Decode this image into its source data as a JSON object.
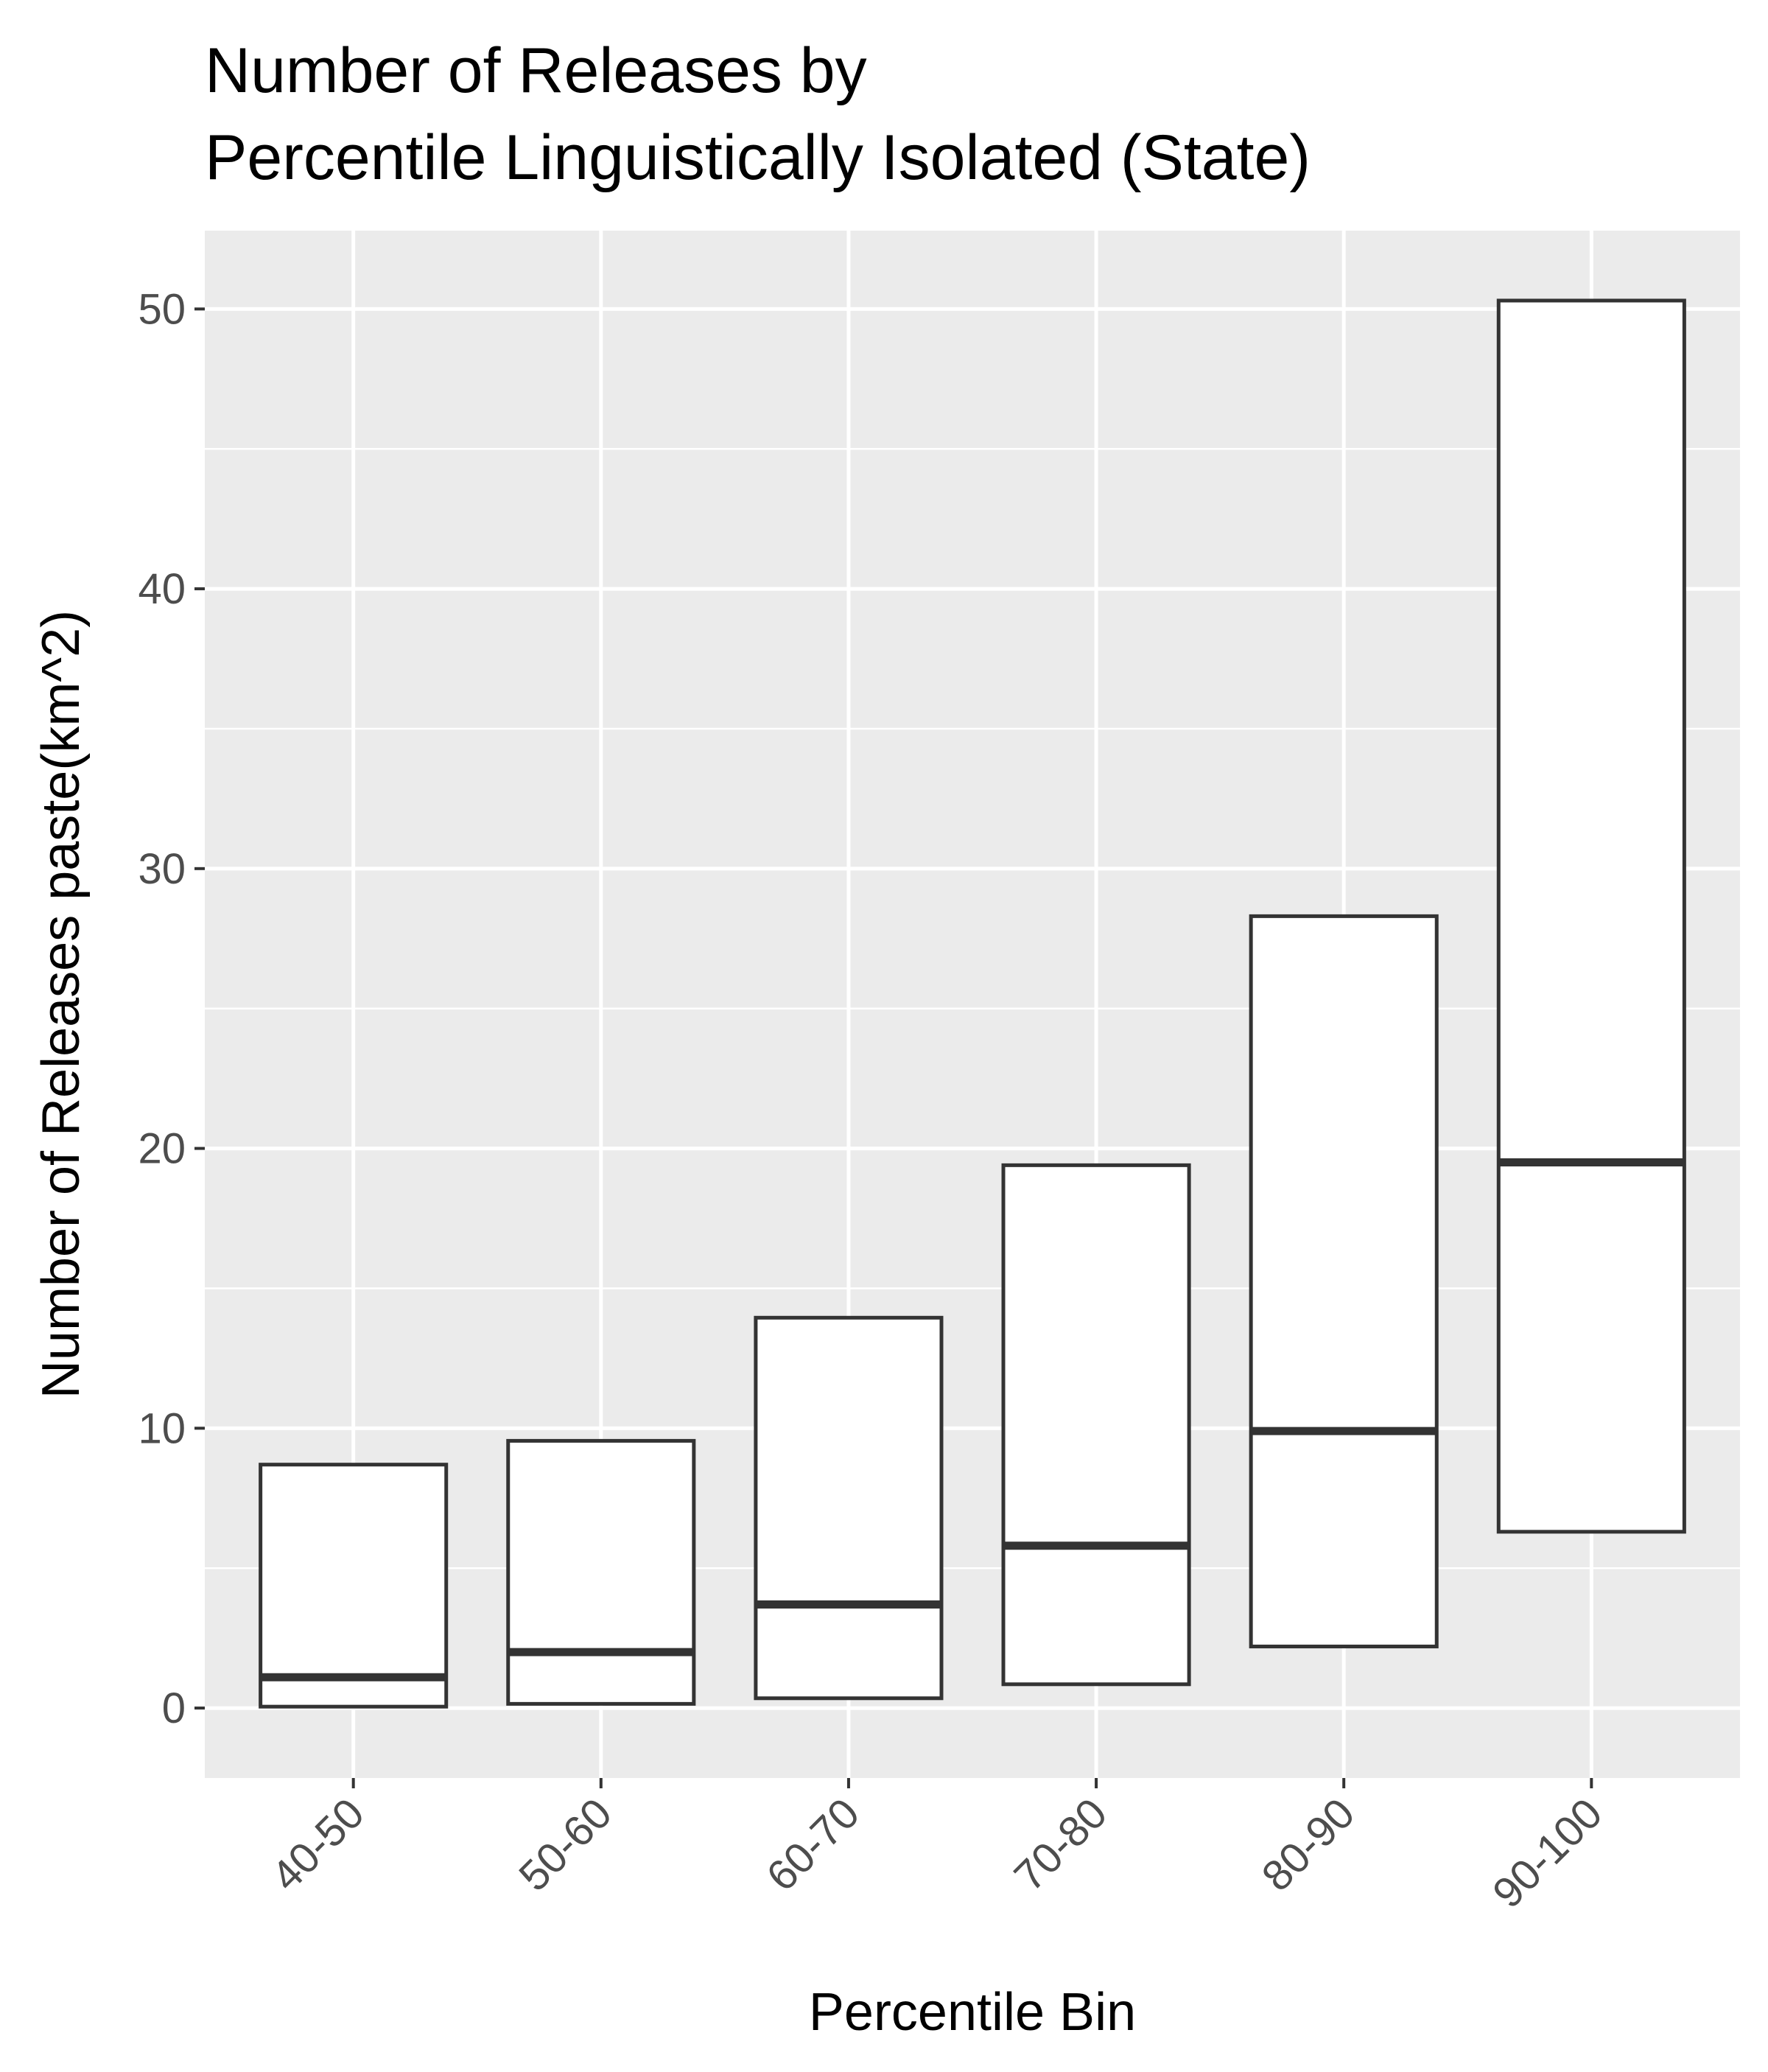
{
  "chart_data": {
    "type": "boxplot",
    "title_lines": [
      "Number of Releases by",
      "Percentile Linguistically Isolated (State)"
    ],
    "xlabel": "Percentile Bin",
    "ylabel": "Number of Releases paste(km^2)",
    "categories": [
      "40-50",
      "50-60",
      "60-70",
      "70-80",
      "80-90",
      "90-100"
    ],
    "boxes": [
      {
        "category": "40-50",
        "q1": 0.05,
        "median": 1.1,
        "q3": 8.7
      },
      {
        "category": "50-60",
        "q1": 0.15,
        "median": 2.0,
        "q3": 9.55
      },
      {
        "category": "60-70",
        "q1": 0.35,
        "median": 3.7,
        "q3": 13.95
      },
      {
        "category": "70-80",
        "q1": 0.85,
        "median": 5.8,
        "q3": 19.4
      },
      {
        "category": "80-90",
        "q1": 2.2,
        "median": 9.9,
        "q3": 28.3
      },
      {
        "category": "90-100",
        "q1": 6.3,
        "median": 19.5,
        "q3": 50.3
      }
    ],
    "yticks": [
      0,
      10,
      20,
      30,
      40,
      50
    ],
    "ylim": [
      -2.5,
      52.8
    ],
    "grid": true,
    "legend": "none",
    "colors": {
      "panel": "#ebebeb",
      "grid": "#ffffff",
      "box_fill": "#ffffff",
      "box_stroke": "#333333",
      "tick_label": "#4d4d4d"
    }
  }
}
